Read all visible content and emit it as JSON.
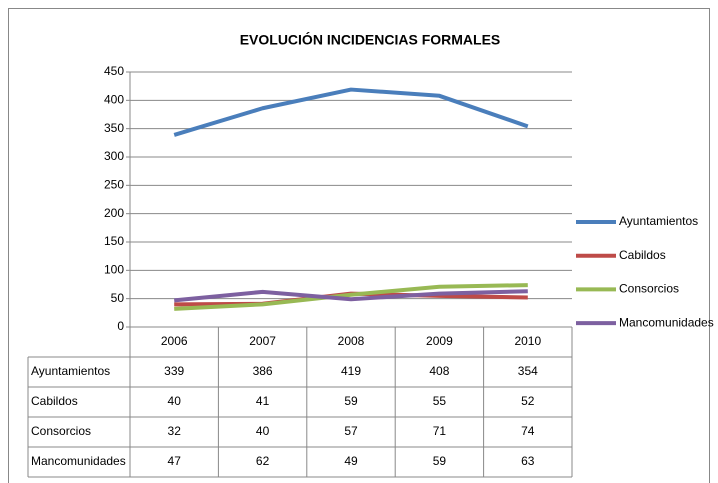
{
  "chart_data": {
    "type": "line",
    "title": "EVOLUCIÓN INCIDENCIAS FORMALES",
    "categories": [
      "2006",
      "2007",
      "2008",
      "2009",
      "2010"
    ],
    "series": [
      {
        "name": "Ayuntamientos",
        "color": "#4a7ebb",
        "values": [
          339,
          386,
          419,
          408,
          354
        ]
      },
      {
        "name": "Cabildos",
        "color": "#be4b48",
        "values": [
          40,
          41,
          59,
          55,
          52
        ]
      },
      {
        "name": "Consorcios",
        "color": "#98b954",
        "values": [
          32,
          40,
          57,
          71,
          74
        ]
      },
      {
        "name": "Mancomunidades",
        "color": "#7d60a0",
        "values": [
          47,
          62,
          49,
          59,
          63
        ]
      }
    ],
    "ylim": [
      0,
      450
    ],
    "yticks": [
      0,
      50,
      100,
      150,
      200,
      250,
      300,
      350,
      400,
      450
    ],
    "grid": true,
    "legend": "right",
    "data_table": true
  }
}
